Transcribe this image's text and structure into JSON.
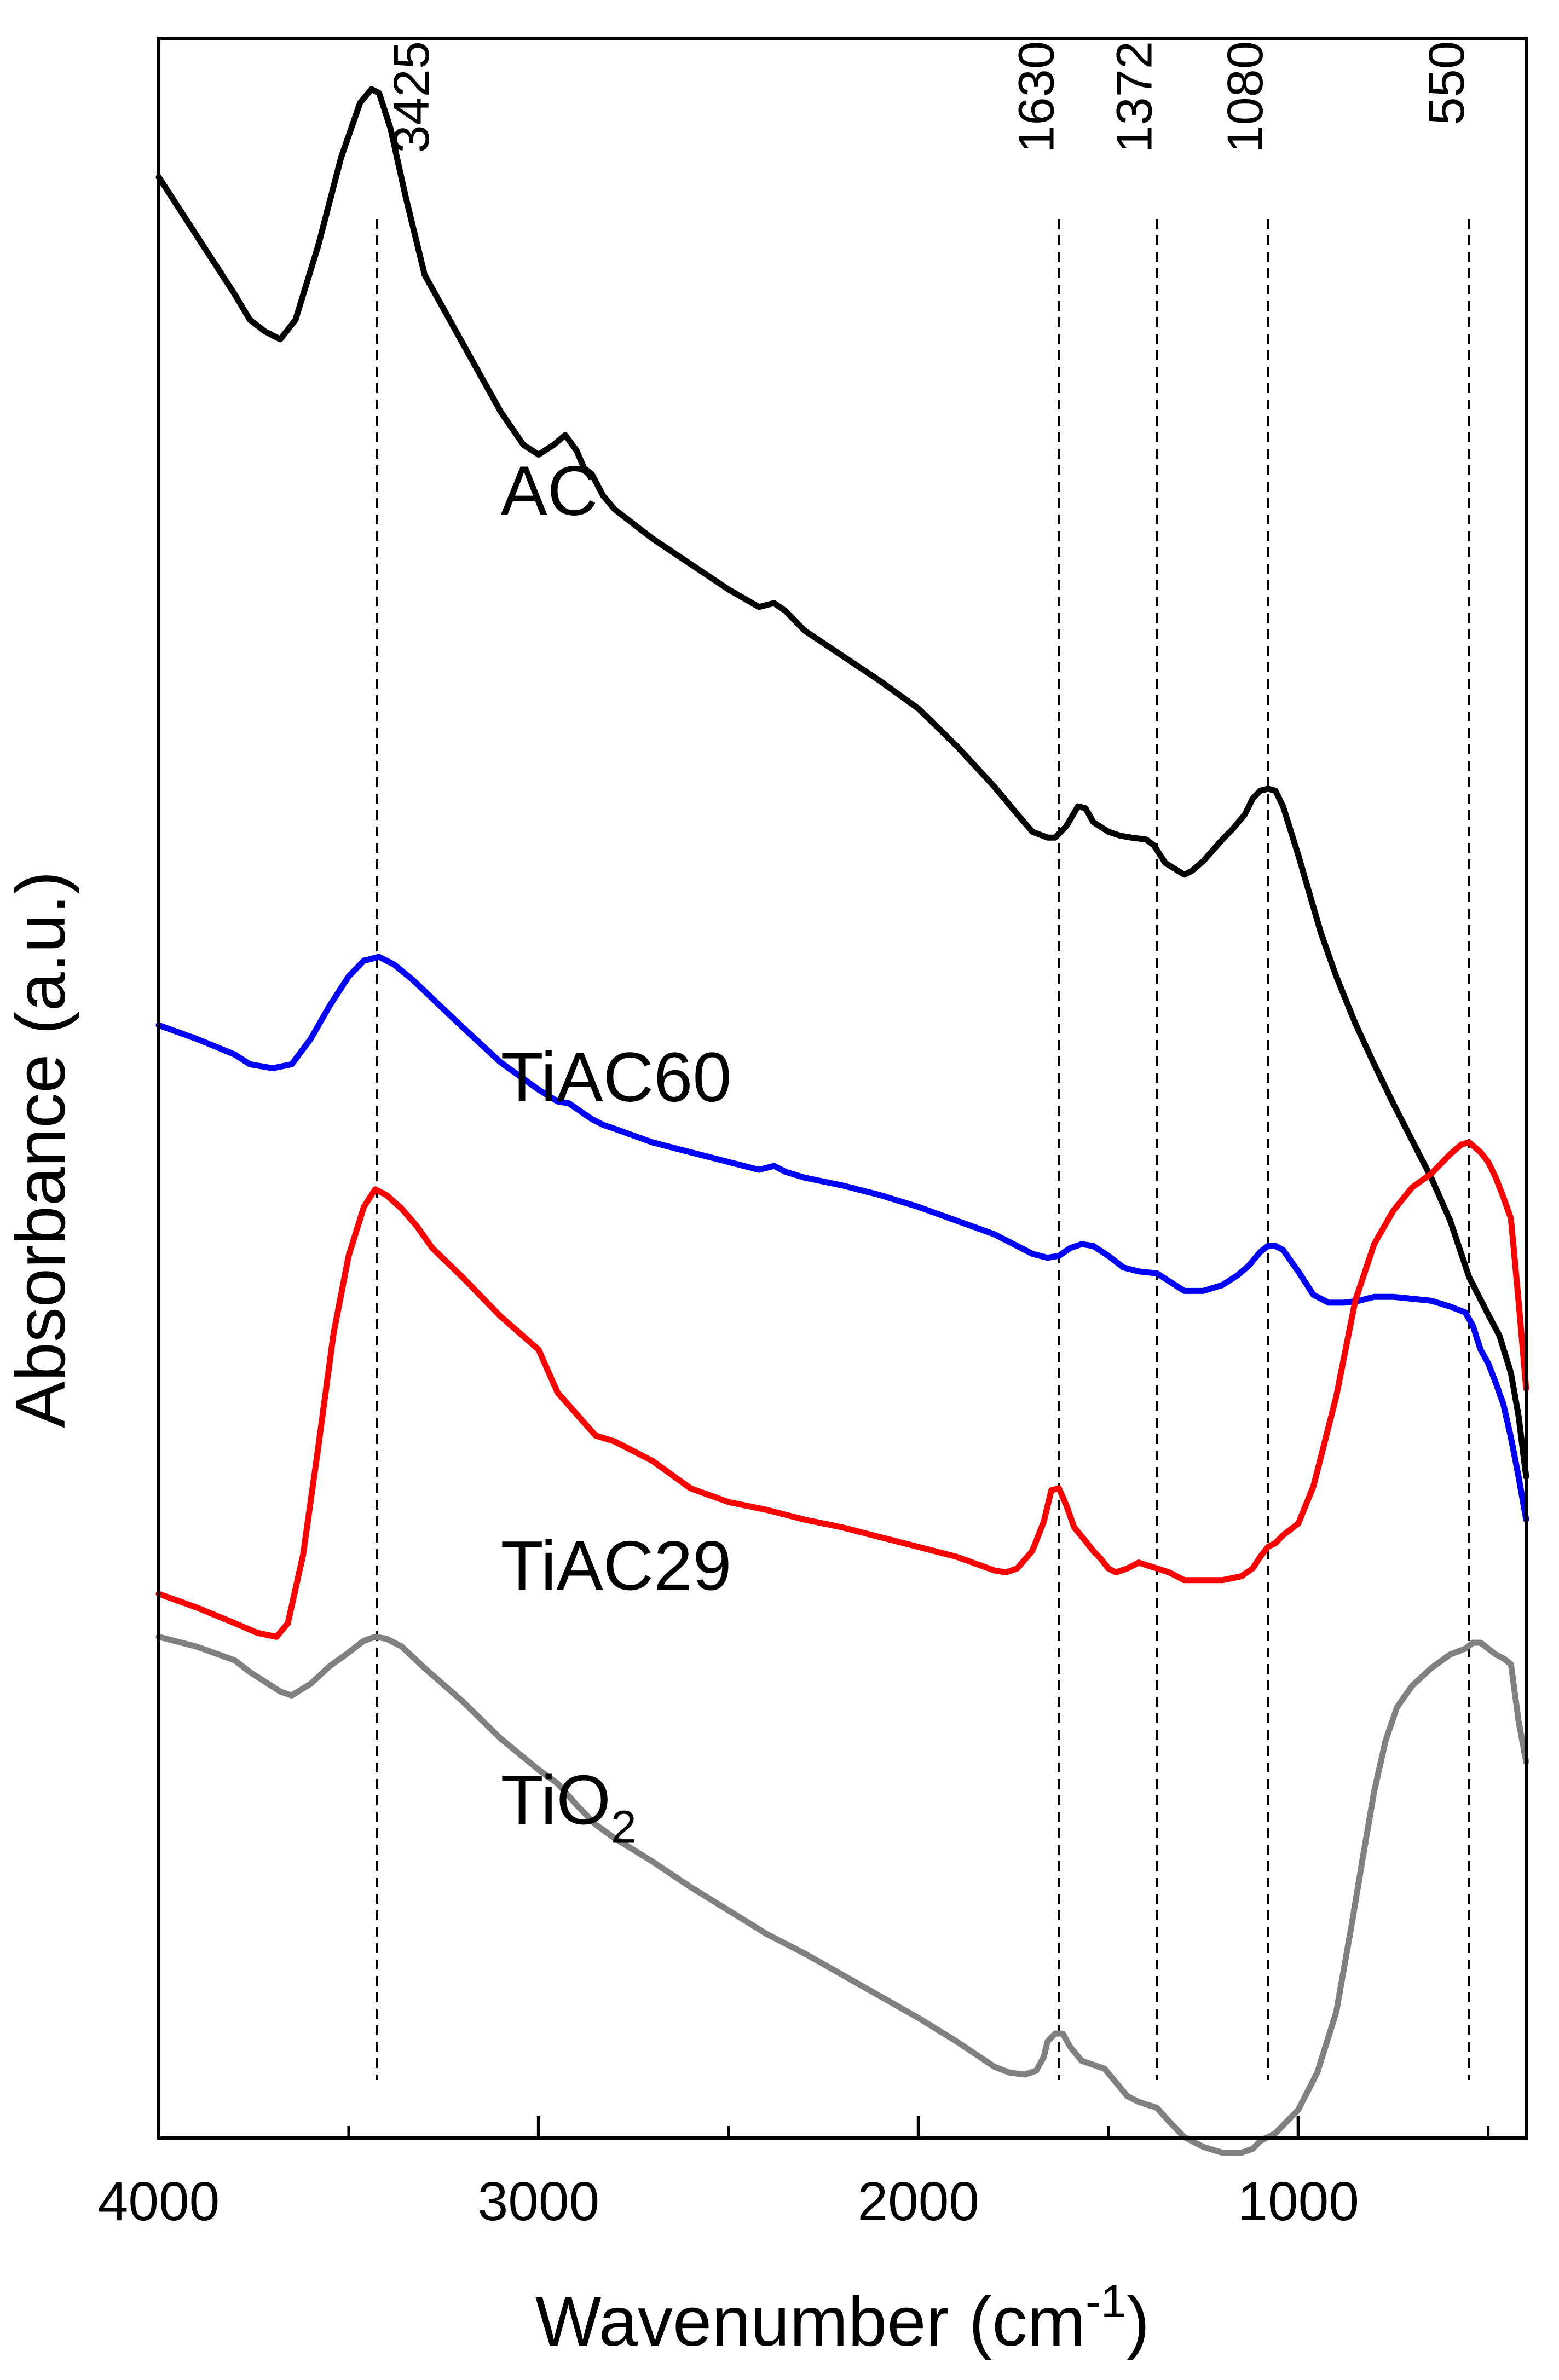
{
  "chart_data": {
    "type": "line",
    "title": "",
    "xlabel": "Wavenumber (cm",
    "xlabel_sup": "-1",
    "xlabel_end": ")",
    "ylabel": "Absorbance (a.u.)",
    "xlim": [
      4000,
      400
    ],
    "ylim": [
      0,
      100
    ],
    "x_reversed": true,
    "yticks_shown": false,
    "xticks": [
      4000,
      3000,
      2000,
      1000
    ],
    "xtick_labels": [
      "4000",
      "3000",
      "2000",
      "1000"
    ],
    "xticks_minor": [
      3500,
      2500,
      1500,
      500
    ],
    "reference_lines": [
      {
        "x": 3425,
        "label": "3425"
      },
      {
        "x": 1630,
        "label": "1630"
      },
      {
        "x": 1372,
        "label": "1372"
      },
      {
        "x": 1080,
        "label": "1080"
      },
      {
        "x": 550,
        "label": "550"
      }
    ],
    "series": [
      {
        "name": "AC",
        "label": "AC",
        "color": "#000000",
        "label_x": 3100,
        "label_y": 82.5,
        "x": [
          4000,
          3900,
          3800,
          3760,
          3720,
          3680,
          3640,
          3580,
          3520,
          3470,
          3440,
          3420,
          3390,
          3350,
          3300,
          3200,
          3100,
          3040,
          3000,
          2960,
          2930,
          2900,
          2880,
          2860,
          2830,
          2800,
          2700,
          2600,
          2500,
          2420,
          2380,
          2350,
          2300,
          2200,
          2100,
          2000,
          1900,
          1800,
          1740,
          1700,
          1660,
          1640,
          1610,
          1580,
          1560,
          1540,
          1500,
          1470,
          1440,
          1400,
          1380,
          1350,
          1300,
          1280,
          1250,
          1200,
          1170,
          1140,
          1120,
          1100,
          1080,
          1060,
          1040,
          1000,
          940,
          900,
          850,
          800,
          750,
          700,
          650,
          600,
          550,
          500,
          470,
          440,
          420,
          400
        ],
        "values": [
          98.5,
          95.5,
          92.5,
          91.2,
          90.6,
          90.2,
          91.2,
          95,
          99.5,
          102.3,
          103,
          102.8,
          101,
          97.5,
          93.5,
          90,
          86.5,
          84.8,
          84.3,
          84.8,
          85.3,
          84.5,
          83.6,
          83.3,
          82.2,
          81.5,
          80,
          78.7,
          77.4,
          76.5,
          76.7,
          76.3,
          75.3,
          74,
          72.7,
          71.3,
          69.4,
          67.3,
          65.9,
          65,
          64.7,
          64.7,
          65.3,
          66.3,
          66.2,
          65.5,
          65,
          64.8,
          64.7,
          64.6,
          64.3,
          63.4,
          62.8,
          63,
          63.5,
          64.6,
          65.2,
          65.9,
          66.7,
          67.1,
          67.2,
          67.1,
          66.3,
          63.8,
          59.8,
          57.6,
          55.2,
          53.1,
          51.1,
          49.2,
          47.3,
          45.1,
          42.2,
          40.3,
          39.2,
          37.3,
          35.1,
          32
        ]
      },
      {
        "name": "TiAC60",
        "label": "TiAC60",
        "color": "#0000ff",
        "label_x": 3100,
        "label_y": 52.5,
        "x": [
          4000,
          3900,
          3800,
          3760,
          3700,
          3650,
          3600,
          3550,
          3500,
          3460,
          3420,
          3380,
          3330,
          3260,
          3200,
          3100,
          3000,
          2950,
          2920,
          2890,
          2860,
          2830,
          2800,
          2700,
          2600,
          2500,
          2420,
          2380,
          2350,
          2300,
          2200,
          2100,
          2000,
          1900,
          1800,
          1740,
          1700,
          1660,
          1630,
          1600,
          1570,
          1540,
          1500,
          1460,
          1420,
          1372,
          1340,
          1300,
          1250,
          1200,
          1160,
          1130,
          1100,
          1080,
          1060,
          1040,
          1000,
          960,
          920,
          880,
          840,
          800,
          750,
          700,
          650,
          600,
          560,
          540,
          520,
          500,
          480,
          460,
          440,
          420,
          400
        ],
        "values": [
          55.1,
          54.4,
          53.6,
          53.1,
          52.9,
          53.1,
          54.4,
          56.1,
          57.6,
          58.4,
          58.6,
          58.2,
          57.4,
          56.1,
          55,
          53.2,
          51.8,
          51.2,
          51.1,
          50.7,
          50.3,
          50,
          49.8,
          49.1,
          48.6,
          48.1,
          47.7,
          47.9,
          47.6,
          47.3,
          46.9,
          46.4,
          45.8,
          45.1,
          44.4,
          43.8,
          43.4,
          43.2,
          43.3,
          43.7,
          43.9,
          43.8,
          43.3,
          42.7,
          42.5,
          42.4,
          42,
          41.5,
          41.5,
          41.8,
          42.3,
          42.8,
          43.5,
          43.8,
          43.8,
          43.6,
          42.5,
          41.3,
          40.9,
          40.9,
          41,
          41.2,
          41.2,
          41.1,
          41,
          40.7,
          40.4,
          39.7,
          38.5,
          37.8,
          36.8,
          35.7,
          34,
          32,
          29.8
        ]
      },
      {
        "name": "TiAC29",
        "label": "TiAC29",
        "color": "#ff0000",
        "label_x": 3100,
        "label_y": 27.5,
        "x": [
          4000,
          3900,
          3800,
          3740,
          3690,
          3660,
          3620,
          3580,
          3540,
          3500,
          3460,
          3430,
          3400,
          3360,
          3320,
          3280,
          3200,
          3100,
          3000,
          2950,
          2900,
          2850,
          2800,
          2700,
          2600,
          2500,
          2400,
          2300,
          2200,
          2100,
          2000,
          1900,
          1800,
          1770,
          1740,
          1700,
          1670,
          1650,
          1630,
          1610,
          1590,
          1560,
          1540,
          1520,
          1500,
          1480,
          1450,
          1420,
          1372,
          1340,
          1300,
          1250,
          1200,
          1150,
          1120,
          1100,
          1080,
          1060,
          1040,
          1000,
          960,
          900,
          850,
          800,
          750,
          700,
          650,
          600,
          570,
          550,
          520,
          500,
          480,
          460,
          440,
          420,
          400
        ],
        "values": [
          26,
          25.3,
          24.5,
          24,
          23.8,
          24.5,
          28,
          33.5,
          39.3,
          43.3,
          45.8,
          46.7,
          46.4,
          45.7,
          44.8,
          43.7,
          42.2,
          40.2,
          38.5,
          36.3,
          35.2,
          34.1,
          33.8,
          32.8,
          31.4,
          30.7,
          30.3,
          29.8,
          29.4,
          28.9,
          28.4,
          27.9,
          27.2,
          27.1,
          27.3,
          28.2,
          29.7,
          31.3,
          31.4,
          30.5,
          29.4,
          28.7,
          28.2,
          27.8,
          27.3,
          27.1,
          27.3,
          27.6,
          27.3,
          27.1,
          26.7,
          26.7,
          26.7,
          26.9,
          27.3,
          27.9,
          28.4,
          28.6,
          29,
          29.6,
          31.5,
          36.1,
          41,
          43.9,
          45.6,
          46.8,
          47.5,
          48.5,
          49,
          49.1,
          48.6,
          48.1,
          47.3,
          46.3,
          45.2,
          41,
          36.5
        ]
      },
      {
        "name": "TiO2",
        "label": "TiO",
        "label_sub": "2",
        "color": "#808080",
        "label_x": 3100,
        "label_y": 15.5,
        "x": [
          4000,
          3900,
          3800,
          3760,
          3720,
          3680,
          3650,
          3600,
          3550,
          3500,
          3460,
          3430,
          3400,
          3360,
          3300,
          3200,
          3100,
          3000,
          2950,
          2900,
          2850,
          2800,
          2700,
          2600,
          2500,
          2400,
          2300,
          2200,
          2100,
          2000,
          1900,
          1800,
          1760,
          1720,
          1690,
          1670,
          1660,
          1640,
          1620,
          1600,
          1570,
          1540,
          1510,
          1480,
          1450,
          1420,
          1372,
          1340,
          1300,
          1250,
          1200,
          1150,
          1120,
          1100,
          1060,
          1000,
          950,
          900,
          860,
          830,
          800,
          770,
          740,
          700,
          650,
          600,
          560,
          540,
          520,
          500,
          480,
          460,
          440,
          420,
          400
        ],
        "values": [
          23.8,
          23.3,
          22.6,
          22,
          21.5,
          21,
          20.8,
          21.4,
          22.3,
          23,
          23.6,
          23.8,
          23.7,
          23.3,
          22.2,
          20.5,
          18.6,
          17,
          16.3,
          15.2,
          14.2,
          13.5,
          12.3,
          11,
          9.8,
          8.6,
          7.6,
          6.5,
          5.4,
          4.3,
          3.1,
          1.8,
          1.5,
          1.4,
          1.6,
          2.3,
          3.1,
          3.5,
          3.5,
          2.8,
          2.1,
          1.9,
          1.7,
          1,
          0.3,
          0,
          -0.3,
          -1,
          -1.8,
          -2.3,
          -2.6,
          -2.6,
          -2.4,
          -2,
          -1.6,
          -0.4,
          1.5,
          4.6,
          9,
          12.5,
          15.9,
          18.5,
          20.2,
          21.3,
          22.2,
          22.9,
          23.2,
          23.5,
          23.5,
          23.2,
          22.9,
          22.7,
          22.4,
          19.5,
          17.4
        ]
      }
    ]
  }
}
